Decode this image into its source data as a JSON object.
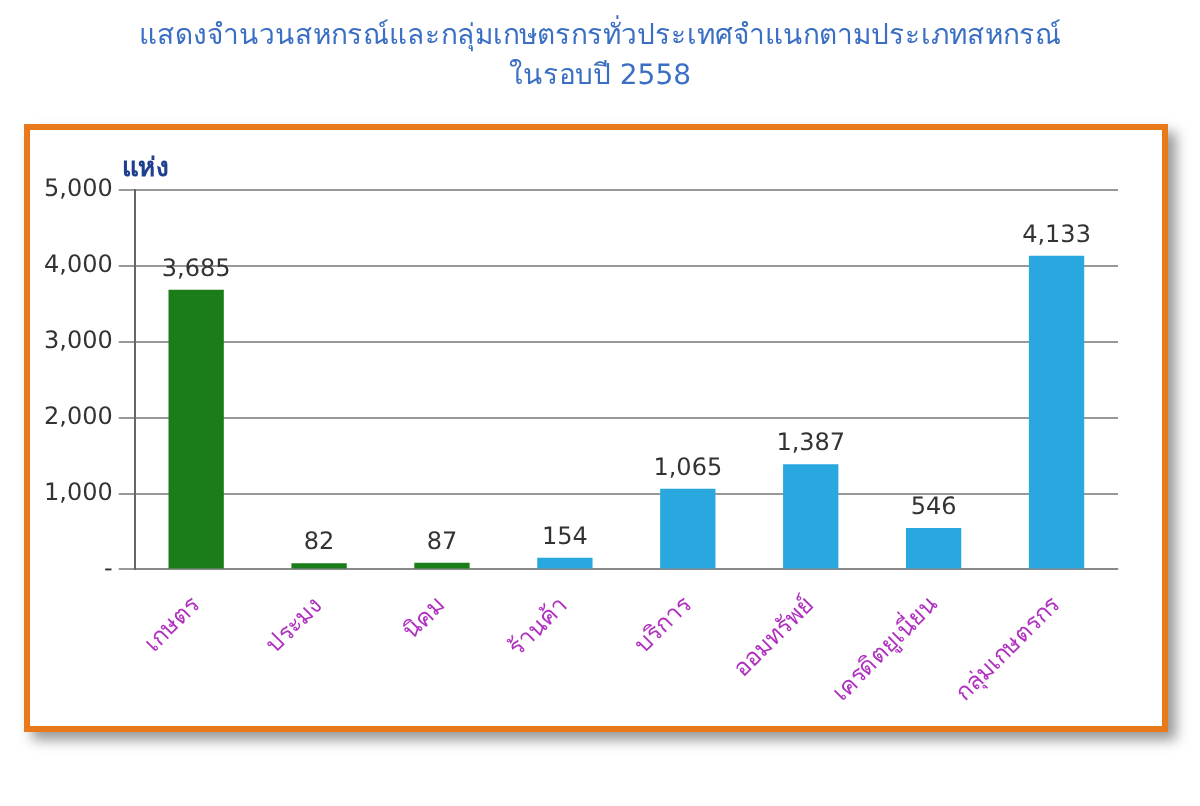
{
  "chart_data": {
    "type": "bar",
    "title": "แสดงจำนวนสหกรณ์และกลุ่มเกษตรกรทั่วประเทศจำแนกตามประเภทสหกรณ์",
    "subtitle": "ในรอบปี 2558",
    "ylabel": "แห่ง",
    "categories": [
      "เกษตร",
      "ประมง",
      "นิคม",
      "ร้านค้า",
      "บริการ",
      "ออมทรัพย์",
      "เครดิตยูเนี่ยน",
      "กลุ่มเกษตรกร"
    ],
    "values": [
      3685,
      82,
      87,
      154,
      1065,
      1387,
      546,
      4133
    ],
    "colors": [
      "#1a7d1a",
      "#1a7d1a",
      "#1a7d1a",
      "#29a8e0",
      "#29a8e0",
      "#29a8e0",
      "#29a8e0",
      "#29a8e0"
    ],
    "value_labels": [
      "3,685",
      "82",
      "87",
      "154",
      "1,065",
      "1,387",
      "546",
      "4,133"
    ],
    "ylim": [
      0,
      5000
    ],
    "yticks": [
      {
        "value": 0,
        "label": "-"
      },
      {
        "value": 1000,
        "label": "1,000"
      },
      {
        "value": 2000,
        "label": "2,000"
      },
      {
        "value": 3000,
        "label": "3,000"
      },
      {
        "value": 4000,
        "label": "4,000"
      },
      {
        "value": 5000,
        "label": "5,000"
      }
    ],
    "grid": "y",
    "legend": false
  }
}
